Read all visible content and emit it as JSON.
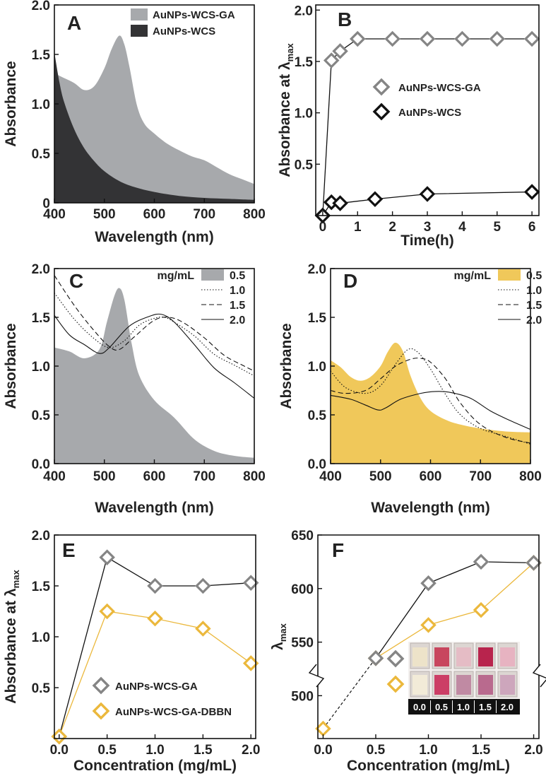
{
  "colors": {
    "grey": "#a7a9ac",
    "dark": "#333335",
    "gold": "#f0c85a",
    "marker_grey": "#858585",
    "marker_gold": "#ebb83c",
    "line": "#111111"
  },
  "chart_data": [
    {
      "panel": "A",
      "type": "area",
      "xlabel": "Wavelength (nm)",
      "ylabel": "Absorbance",
      "xlim": [
        400,
        800
      ],
      "ylim": [
        0,
        2.0
      ],
      "xticks": [
        "400",
        "500",
        "600",
        "700",
        "800"
      ],
      "yticks": [
        "0",
        "0.5",
        "1.0",
        "1.5",
        "2.0"
      ],
      "legend_location": "top-right",
      "series": [
        {
          "name": "AuNPs-WCS-GA",
          "color": "#a7a9ac",
          "x": [
            400,
            420,
            440,
            460,
            480,
            500,
            515,
            530,
            540,
            550,
            565,
            580,
            600,
            625,
            650,
            675,
            700,
            725,
            750,
            775,
            800
          ],
          "y": [
            1.31,
            1.26,
            1.21,
            1.14,
            1.18,
            1.36,
            1.56,
            1.69,
            1.6,
            1.38,
            0.99,
            0.8,
            0.7,
            0.6,
            0.53,
            0.47,
            0.43,
            0.36,
            0.29,
            0.24,
            0.19
          ]
        },
        {
          "name": "AuNPs-WCS",
          "color": "#333335",
          "x": [
            400,
            410,
            420,
            440,
            460,
            480,
            500,
            530,
            560,
            600,
            650,
            700,
            750,
            800
          ],
          "y": [
            1.52,
            1.22,
            1.01,
            0.74,
            0.55,
            0.42,
            0.32,
            0.22,
            0.16,
            0.11,
            0.07,
            0.05,
            0.04,
            0.03
          ]
        }
      ]
    },
    {
      "panel": "B",
      "type": "line",
      "xlabel": "Time(h)",
      "ylabel": "Absorbance at λ",
      "ylabel_sub": "max",
      "xlim": [
        -0.2,
        6.2
      ],
      "ylim": [
        0,
        2.0
      ],
      "xticks": [
        "0",
        "1",
        "2",
        "3",
        "4",
        "5",
        "6"
      ],
      "yticks": [
        "0.5",
        "1.0",
        "1.5",
        "2.0"
      ],
      "legend_location": "center-right",
      "series": [
        {
          "name": "AuNPs-WCS-GA",
          "color": "#858585",
          "x": [
            0,
            0.25,
            0.5,
            1,
            2,
            3,
            4,
            5,
            6
          ],
          "y": [
            0.0,
            1.51,
            1.6,
            1.72,
            1.72,
            1.72,
            1.72,
            1.72,
            1.72
          ]
        },
        {
          "name": "AuNPs-WCS",
          "color": "#111111",
          "x": [
            0,
            0.25,
            0.5,
            1.5,
            3,
            6
          ],
          "y": [
            0.0,
            0.13,
            0.12,
            0.16,
            0.21,
            0.23
          ]
        }
      ]
    },
    {
      "panel": "C",
      "type": "line",
      "xlabel": "Wavelength (nm)",
      "ylabel": "Absorbance",
      "xlim": [
        400,
        800
      ],
      "ylim": [
        0,
        2.0
      ],
      "xticks": [
        "400",
        "500",
        "600",
        "700",
        "800"
      ],
      "yticks": [
        "0.0",
        "0.5",
        "1.0",
        "1.5",
        "2.0"
      ],
      "legend_title": "mg/mL",
      "legend_location": "top-right",
      "series": [
        {
          "name": "0.5",
          "style": "filled",
          "color": "#a7a9ac",
          "x": [
            400,
            430,
            460,
            490,
            505,
            520,
            530,
            540,
            555,
            570,
            600,
            640,
            680,
            720,
            760,
            800
          ],
          "y": [
            1.19,
            1.15,
            1.08,
            1.17,
            1.45,
            1.72,
            1.8,
            1.68,
            1.22,
            0.9,
            0.65,
            0.47,
            0.25,
            0.13,
            0.08,
            0.06
          ]
        },
        {
          "name": "1.0",
          "style": "dotted",
          "color": "#111111",
          "x": [
            400,
            440,
            480,
            510,
            540,
            570,
            600,
            620,
            640,
            680,
            720,
            760,
            800
          ],
          "y": [
            1.75,
            1.48,
            1.28,
            1.19,
            1.26,
            1.42,
            1.49,
            1.5,
            1.45,
            1.31,
            1.12,
            1.01,
            0.9
          ]
        },
        {
          "name": "1.5",
          "style": "dashed",
          "color": "#111111",
          "x": [
            400,
            440,
            480,
            510,
            530,
            560,
            600,
            630,
            660,
            700,
            740,
            780,
            800
          ],
          "y": [
            1.93,
            1.62,
            1.36,
            1.2,
            1.17,
            1.3,
            1.47,
            1.5,
            1.44,
            1.29,
            1.11,
            1.0,
            0.95
          ]
        },
        {
          "name": "2.0",
          "style": "solid",
          "color": "#111111",
          "x": [
            400,
            430,
            460,
            490,
            510,
            550,
            590,
            615,
            640,
            680,
            720,
            760,
            800
          ],
          "y": [
            1.52,
            1.32,
            1.22,
            1.13,
            1.19,
            1.41,
            1.51,
            1.53,
            1.45,
            1.22,
            0.98,
            0.83,
            0.67
          ]
        }
      ]
    },
    {
      "panel": "D",
      "type": "line",
      "xlabel": "Wavelength (nm)",
      "ylabel": "Absorbance",
      "xlim": [
        400,
        800
      ],
      "ylim": [
        0,
        2.0
      ],
      "xticks": [
        "400",
        "500",
        "600",
        "700",
        "800"
      ],
      "yticks": [
        "0.0",
        "0.5",
        "1.0",
        "1.5",
        "2.0"
      ],
      "legend_title": "mg/mL",
      "legend_location": "top-right",
      "series": [
        {
          "name": "0.5",
          "style": "filled",
          "color": "#f0c85a",
          "x": [
            400,
            420,
            440,
            460,
            480,
            500,
            515,
            530,
            545,
            560,
            580,
            600,
            630,
            660,
            700,
            750,
            800
          ],
          "y": [
            1.06,
            0.99,
            0.89,
            0.85,
            0.89,
            1.0,
            1.15,
            1.24,
            1.15,
            0.9,
            0.67,
            0.54,
            0.45,
            0.4,
            0.36,
            0.33,
            0.32
          ]
        },
        {
          "name": "1.0",
          "style": "dotted",
          "color": "#111111",
          "x": [
            400,
            430,
            470,
            500,
            530,
            555,
            575,
            600,
            630,
            660,
            700,
            750,
            800
          ],
          "y": [
            0.95,
            0.78,
            0.72,
            0.8,
            1.02,
            1.17,
            1.14,
            0.97,
            0.71,
            0.5,
            0.36,
            0.28,
            0.2
          ]
        },
        {
          "name": "1.5",
          "style": "dashed",
          "color": "#111111",
          "x": [
            400,
            430,
            470,
            500,
            530,
            560,
            580,
            600,
            630,
            660,
            700,
            750,
            800
          ],
          "y": [
            0.75,
            0.72,
            0.75,
            0.87,
            1.0,
            1.07,
            1.08,
            1.04,
            0.87,
            0.62,
            0.4,
            0.27,
            0.21
          ]
        },
        {
          "name": "2.0",
          "style": "solid",
          "color": "#111111",
          "x": [
            400,
            440,
            470,
            495,
            510,
            540,
            580,
            610,
            640,
            680,
            720,
            760,
            800
          ],
          "y": [
            0.7,
            0.66,
            0.6,
            0.55,
            0.57,
            0.66,
            0.72,
            0.74,
            0.73,
            0.67,
            0.54,
            0.44,
            0.35
          ]
        }
      ]
    },
    {
      "panel": "E",
      "type": "line",
      "xlabel": "Concentration (mg/mL)",
      "ylabel": "Absorbance at λ",
      "ylabel_sub": "max",
      "xlim": [
        -0.05,
        2.05
      ],
      "ylim": [
        0,
        2.0
      ],
      "xticks": [
        "0.0",
        "0.5",
        "1.0",
        "1.5",
        "2.0"
      ],
      "yticks": [
        "0.5",
        "1.0",
        "1.5",
        "2.0"
      ],
      "legend_location": "bottom-left",
      "series": [
        {
          "name": "AuNPs-WCS-GA",
          "color": "#858585",
          "x": [
            0,
            0.5,
            1.0,
            1.5,
            2.0
          ],
          "y": [
            0.02,
            1.78,
            1.5,
            1.5,
            1.53
          ]
        },
        {
          "name": "AuNPs-WCS-GA-DBBN",
          "color": "#ebb83c",
          "x": [
            0,
            0.5,
            1.0,
            1.5,
            2.0
          ],
          "y": [
            0.02,
            1.25,
            1.18,
            1.08,
            0.74
          ]
        }
      ]
    },
    {
      "panel": "F",
      "type": "line",
      "xlabel": "Concentration (mg/mL)",
      "ylabel": "λ",
      "ylabel_sub": "max",
      "xlim": [
        -0.05,
        2.05
      ],
      "ylim": [
        460,
        650
      ],
      "axis_break": true,
      "xticks": [
        "0.0",
        "0.5",
        "1.0",
        "1.5",
        "2.0"
      ],
      "yticks": [
        "500",
        "550",
        "600",
        "650"
      ],
      "series": [
        {
          "name": "AuNPs-WCS-GA",
          "color": "#858585",
          "x": [
            0.5,
            1.0,
            1.5,
            2.0
          ],
          "y": [
            535,
            605,
            625,
            624
          ]
        },
        {
          "name": "AuNPs-WCS-GA-DBBN",
          "color": "#ebb83c",
          "x": [
            0.0,
            0.5,
            1.0,
            1.5,
            2.0
          ],
          "y": [
            0,
            535,
            566,
            580,
            624
          ]
        }
      ],
      "inset_labels": [
        "0.0",
        "0.5",
        "1.0",
        "1.5",
        "2.0"
      ]
    }
  ]
}
